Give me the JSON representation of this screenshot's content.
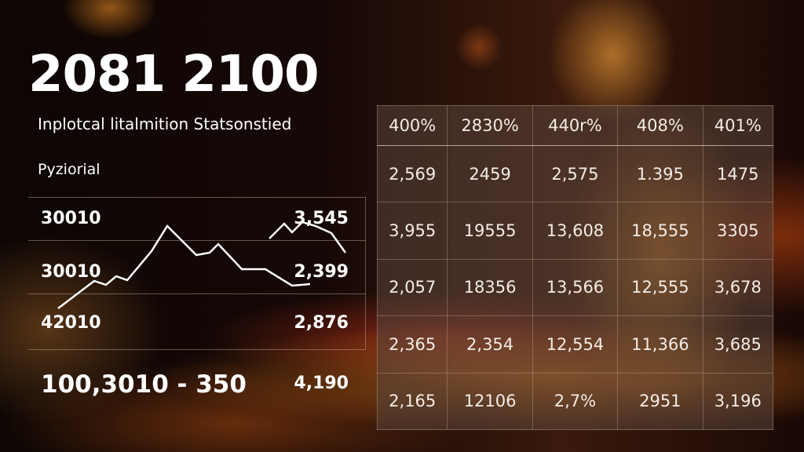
{
  "header": {
    "title": "2081 2100",
    "subtitle": "Inplotcal litalmition Statsonstied",
    "label": "Pyziorial"
  },
  "left_panel": {
    "rows": [
      {
        "label": "30010",
        "value": "3,545"
      },
      {
        "label": "30010",
        "value": "2,399"
      },
      {
        "label": "42010",
        "value": "2,876"
      }
    ],
    "total_label": "100,3010 - 350",
    "total_value": "4,190"
  },
  "chart_data": {
    "type": "table",
    "columns": [
      "400%",
      "2830%",
      "440r%",
      "408%",
      "401%"
    ],
    "rows": [
      [
        "2,569",
        "2459",
        "2,575",
        "1.395",
        "1475"
      ],
      [
        "3,955",
        "19555",
        "13,608",
        "18,555",
        "3305"
      ],
      [
        "2,057",
        "18356",
        "13,566",
        "12,555",
        "3,678"
      ],
      [
        "2,365",
        "2,354",
        "12,554",
        "11,366",
        "3,685"
      ],
      [
        "2,165",
        "12106",
        "2,7%",
        "2951",
        "3,196"
      ]
    ],
    "sparkline": {
      "type": "line",
      "color": "#ffffff"
    }
  },
  "colors": {
    "background": "#160806",
    "accent": "#ff9a3c",
    "text": "#ffffff"
  }
}
